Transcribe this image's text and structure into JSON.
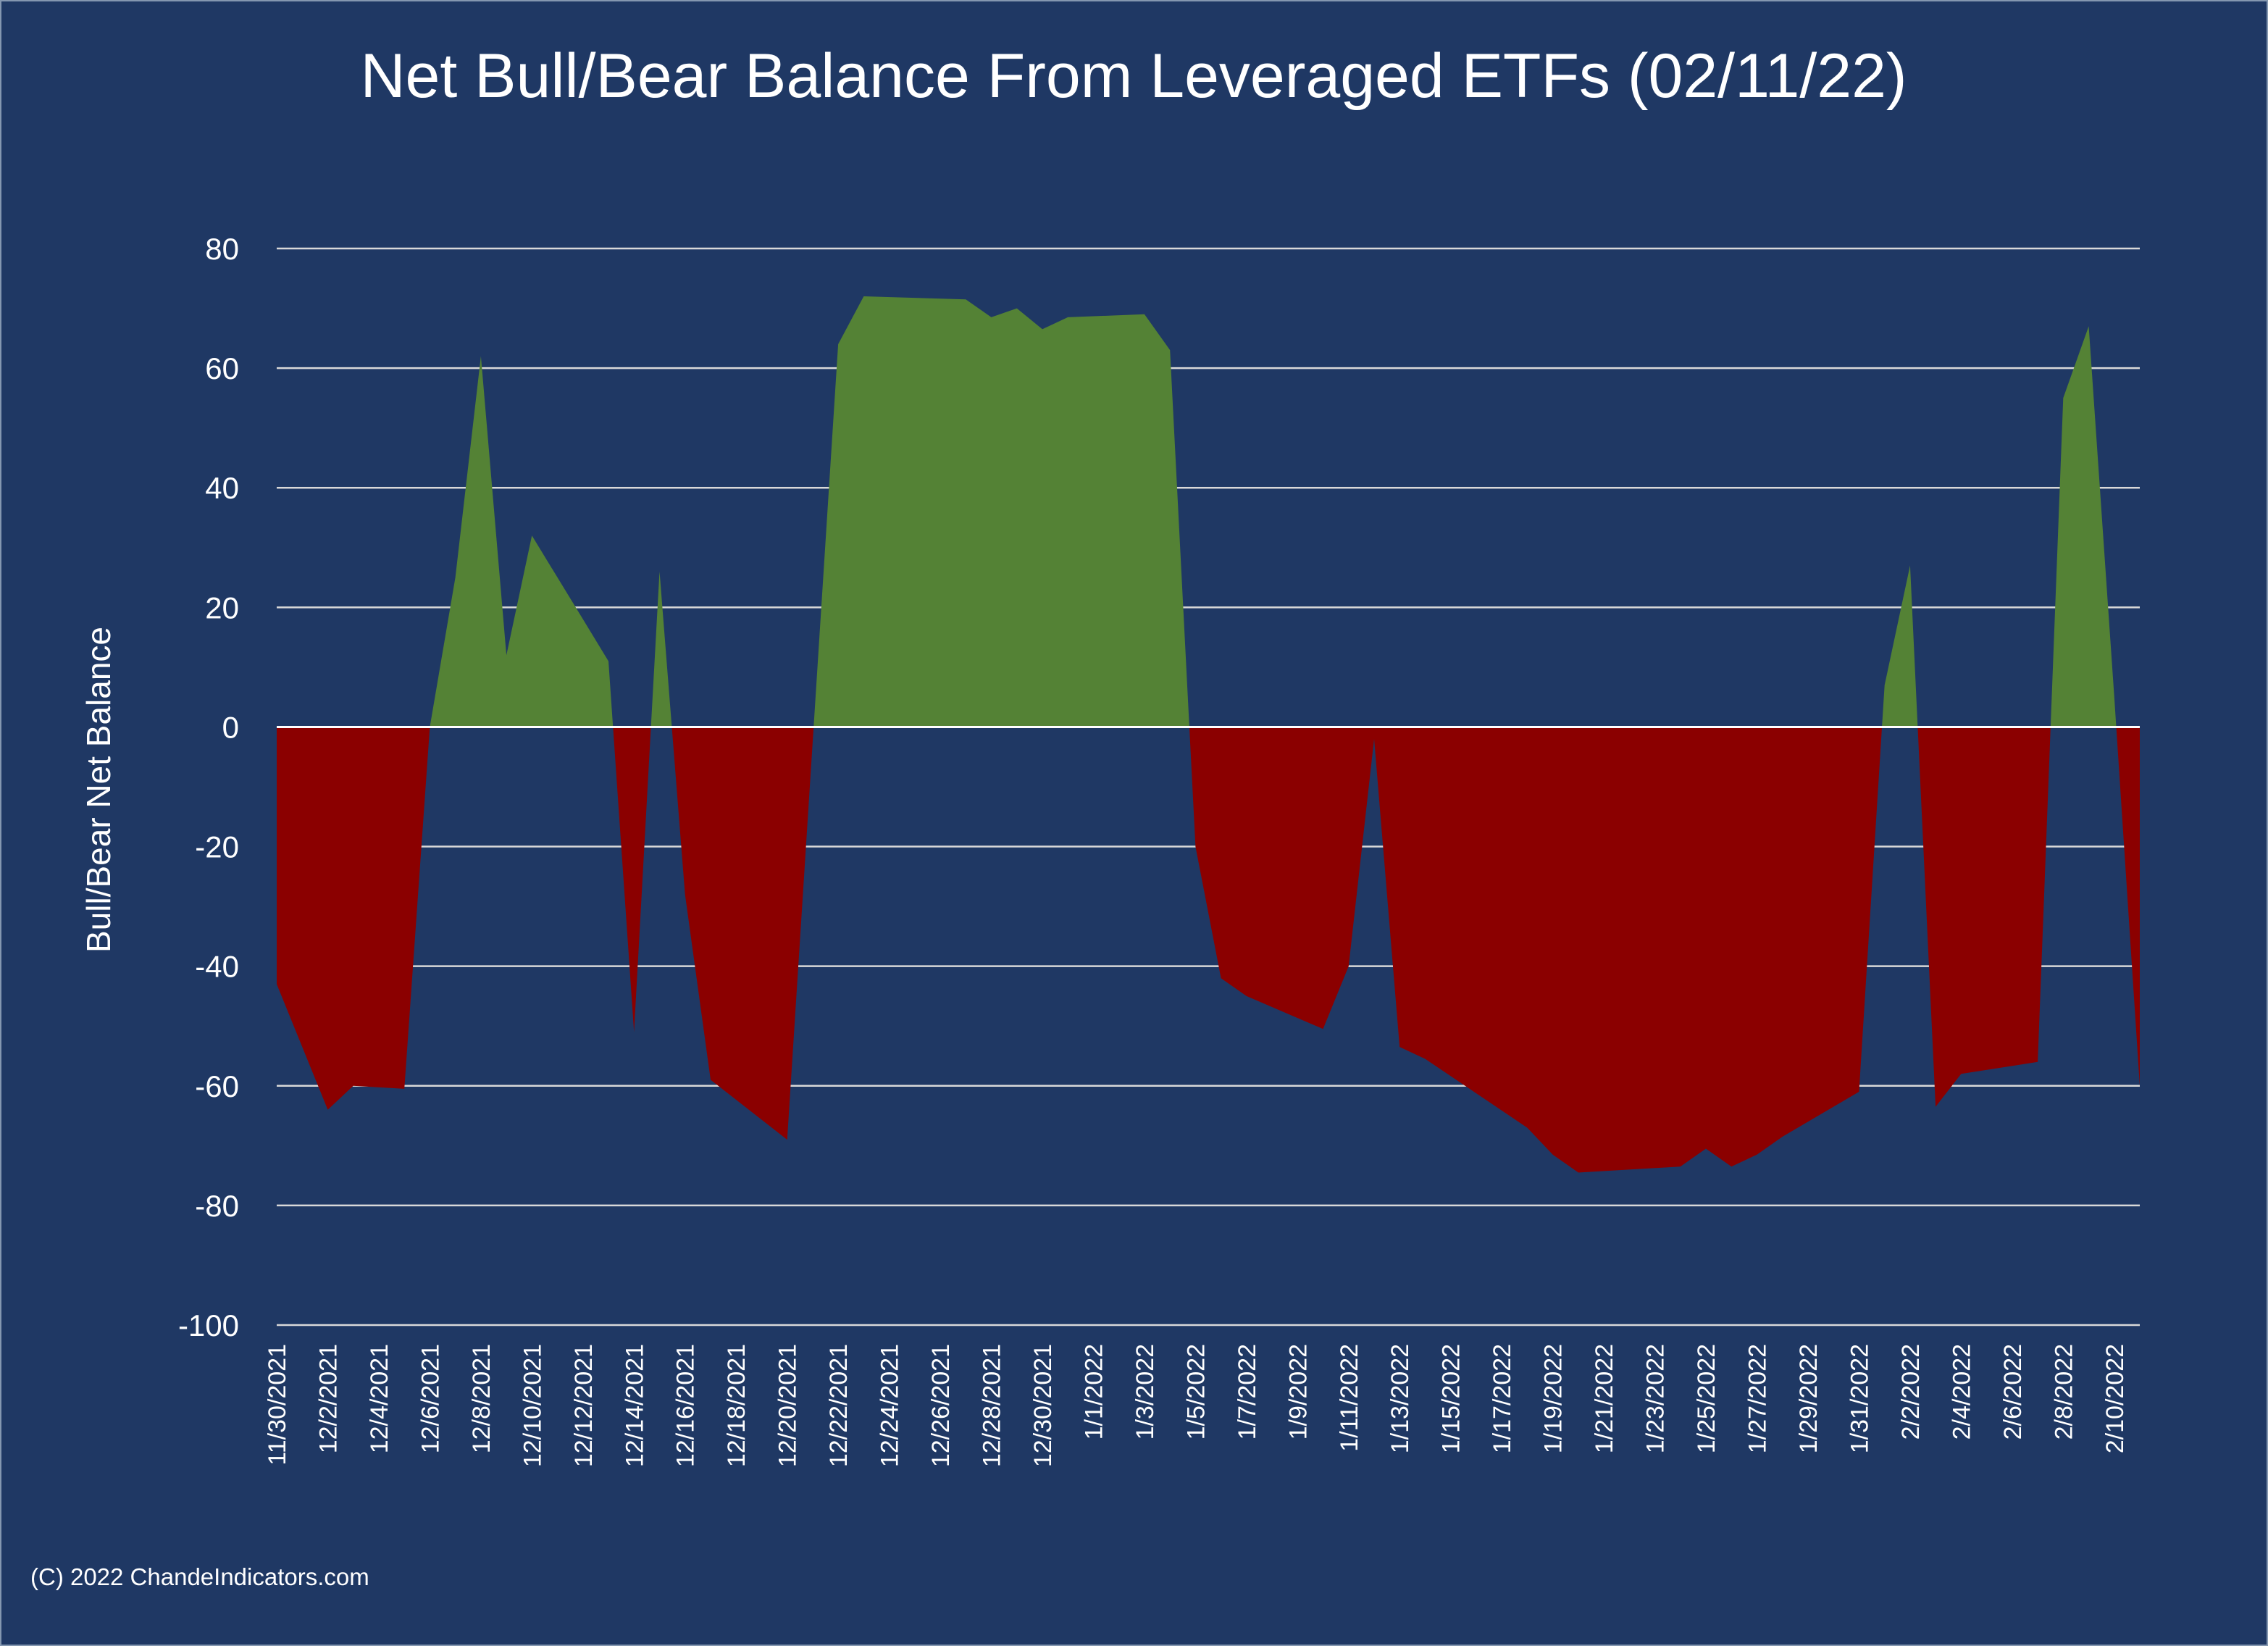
{
  "chart_data": {
    "type": "area",
    "title": "Net Bull/Bear Balance From Leveraged ETFs (02/11/22)",
    "ylabel": "Bull/Bear Net Balance",
    "xlabel": "",
    "ylim": [
      -100,
      80
    ],
    "yticks": [
      80,
      60,
      40,
      20,
      0,
      -20,
      -40,
      -60,
      -80,
      -100
    ],
    "grid": true,
    "legend": "none",
    "x_tick_labels": [
      "11/30/2021",
      "12/2/2021",
      "12/4/2021",
      "12/6/2021",
      "12/8/2021",
      "12/10/2021",
      "12/12/2021",
      "12/14/2021",
      "12/16/2021",
      "12/18/2021",
      "12/20/2021",
      "12/22/2021",
      "12/24/2021",
      "12/26/2021",
      "12/28/2021",
      "12/30/2021",
      "1/1/2022",
      "1/3/2022",
      "1/5/2022",
      "1/7/2022",
      "1/9/2022",
      "1/11/2022",
      "1/13/2022",
      "1/15/2022",
      "1/17/2022",
      "1/19/2022",
      "1/21/2022",
      "1/23/2022",
      "1/25/2022",
      "1/27/2022",
      "1/29/2022",
      "1/31/2022",
      "2/2/2022",
      "2/4/2022",
      "2/6/2022",
      "2/8/2022",
      "2/10/2022"
    ],
    "x_start": "11/30/2021",
    "x_end": "2/11/2022",
    "series": [
      {
        "positive_color": "#548235",
        "negative_color": "#8b0000",
        "points": [
          [
            "11/30/2021",
            -43
          ],
          [
            "12/2/2021",
            -64
          ],
          [
            "12/3/2021",
            -60
          ],
          [
            "12/5/2021",
            -60.5
          ],
          [
            "12/6/2021",
            0
          ],
          [
            "12/7/2021",
            25
          ],
          [
            "12/8/2021",
            62
          ],
          [
            "12/9/2021",
            12
          ],
          [
            "12/10/2021",
            32
          ],
          [
            "12/12/2021",
            18
          ],
          [
            "12/13/2021",
            11
          ],
          [
            "12/14/2021",
            -51
          ],
          [
            "12/15/2021",
            26
          ],
          [
            "12/16/2021",
            -28
          ],
          [
            "12/17/2021",
            -59
          ],
          [
            "12/20/2021",
            -69
          ],
          [
            "12/22/2021",
            64
          ],
          [
            "12/23/2021",
            72
          ],
          [
            "12/27/2021",
            71.5
          ],
          [
            "12/28/2021",
            68.5
          ],
          [
            "12/29/2021",
            70
          ],
          [
            "12/30/2021",
            66.5
          ],
          [
            "12/31/2021",
            68.5
          ],
          [
            "1/3/2022",
            69
          ],
          [
            "1/4/2022",
            63
          ],
          [
            "1/5/2022",
            -20
          ],
          [
            "1/6/2022",
            -42
          ],
          [
            "1/7/2022",
            -45
          ],
          [
            "1/10/2022",
            -50.5
          ],
          [
            "1/11/2022",
            -40
          ],
          [
            "1/12/2022",
            -2
          ],
          [
            "1/13/2022",
            -53.5
          ],
          [
            "1/14/2022",
            -55.5
          ],
          [
            "1/18/2022",
            -67
          ],
          [
            "1/19/2022",
            -71.5
          ],
          [
            "1/20/2022",
            -74.5
          ],
          [
            "1/24/2022",
            -73.5
          ],
          [
            "1/25/2022",
            -70.5
          ],
          [
            "1/26/2022",
            -73.5
          ],
          [
            "1/27/2022",
            -71.5
          ],
          [
            "1/28/2022",
            -68.5
          ],
          [
            "1/31/2022",
            -61
          ],
          [
            "2/1/2022",
            7
          ],
          [
            "2/2/2022",
            27
          ],
          [
            "2/3/2022",
            -63.5
          ],
          [
            "2/4/2022",
            -58
          ],
          [
            "2/7/2022",
            -56
          ],
          [
            "2/8/2022",
            55
          ],
          [
            "2/9/2022",
            67
          ],
          [
            "2/10/2022",
            5
          ],
          [
            "2/11/2022",
            -60
          ]
        ]
      }
    ]
  },
  "footer": {
    "copyright": "(C) 2022 ChandeIndicators.com"
  }
}
